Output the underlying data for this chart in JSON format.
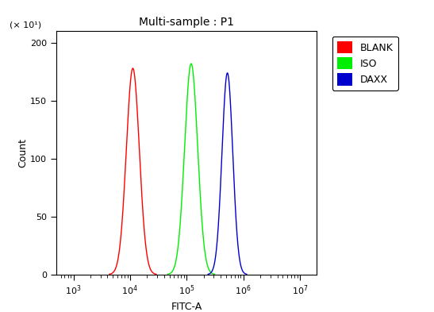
{
  "title": "Multi-sample : P1",
  "xlabel": "FITC-A",
  "ylabel": "Count",
  "ylabel_multiplier": "(× 10¹)",
  "xlim_log": [
    2.7,
    7.3
  ],
  "ylim": [
    0,
    210
  ],
  "yticks": [
    0,
    50,
    100,
    150,
    200
  ],
  "legend_labels": [
    "BLANK",
    "ISO",
    "DAXX"
  ],
  "legend_colors": [
    "#ff0000",
    "#00ee00",
    "#0000cc"
  ],
  "curves": [
    {
      "name": "BLANK",
      "color": "#ff0000",
      "peak_log": 4.05,
      "peak_height": 178,
      "sigma_log": 0.115
    },
    {
      "name": "ISO",
      "color": "#00ee00",
      "peak_log": 5.08,
      "peak_height": 182,
      "sigma_log": 0.115
    },
    {
      "name": "DAXX",
      "color": "#0000cc",
      "peak_log": 5.72,
      "peak_height": 174,
      "sigma_log": 0.095
    }
  ],
  "background_color": "#ffffff",
  "plot_bg_color": "#ffffff",
  "title_fontsize": 10,
  "axis_label_fontsize": 9,
  "tick_fontsize": 8,
  "legend_fontsize": 9
}
